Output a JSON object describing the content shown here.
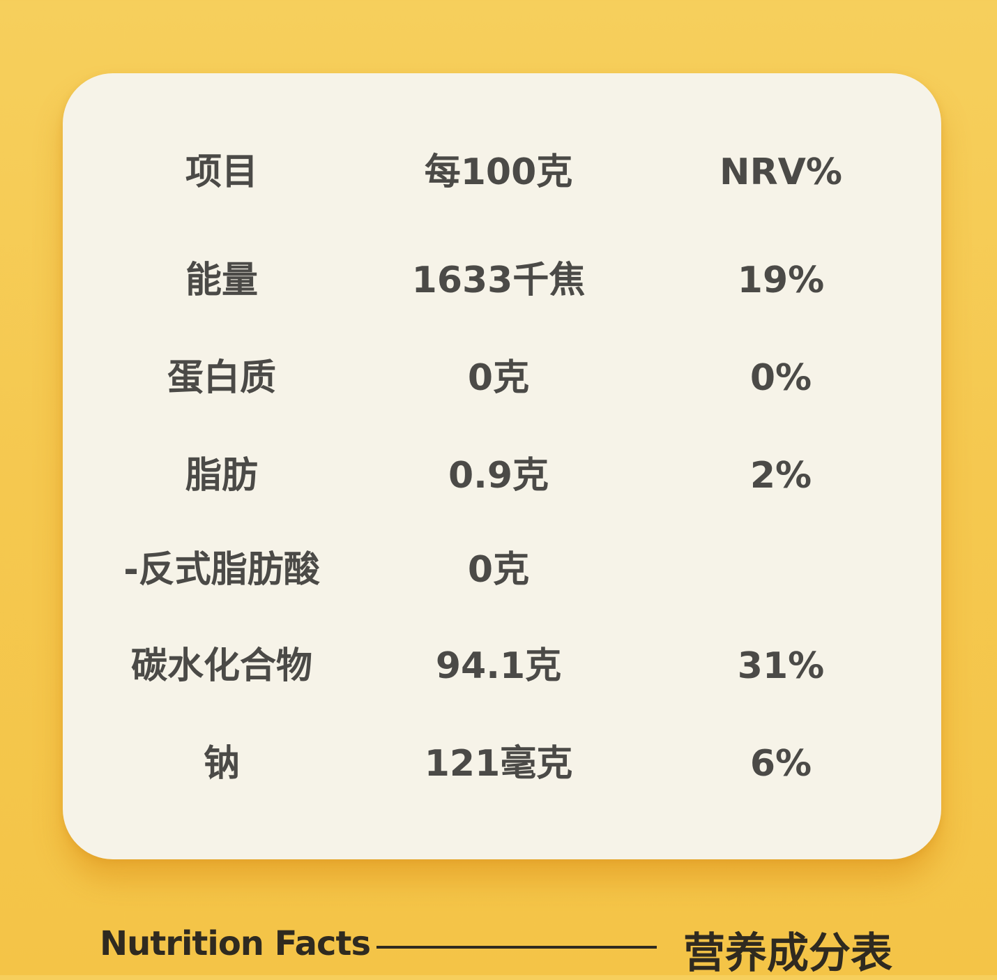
{
  "table": {
    "headers": [
      "项目",
      "每100克",
      "NRV%"
    ],
    "rows": [
      [
        "能量",
        "1633千焦",
        "19%"
      ],
      [
        "蛋白质",
        "0克",
        "0%"
      ],
      [
        "脂肪",
        "0.9克",
        "2%"
      ],
      [
        "-反式脂肪酸",
        "0克",
        ""
      ],
      [
        "碳水化合物",
        "94.1克",
        "31%"
      ],
      [
        "钠",
        "121毫克",
        "6%"
      ]
    ]
  },
  "footer": {
    "english_title": "Nutrition Facts",
    "chinese_title": "营养成分表"
  },
  "colors": {
    "background": "#f5c84f",
    "card": "#f6f3e8",
    "text": "#4b4a47"
  }
}
